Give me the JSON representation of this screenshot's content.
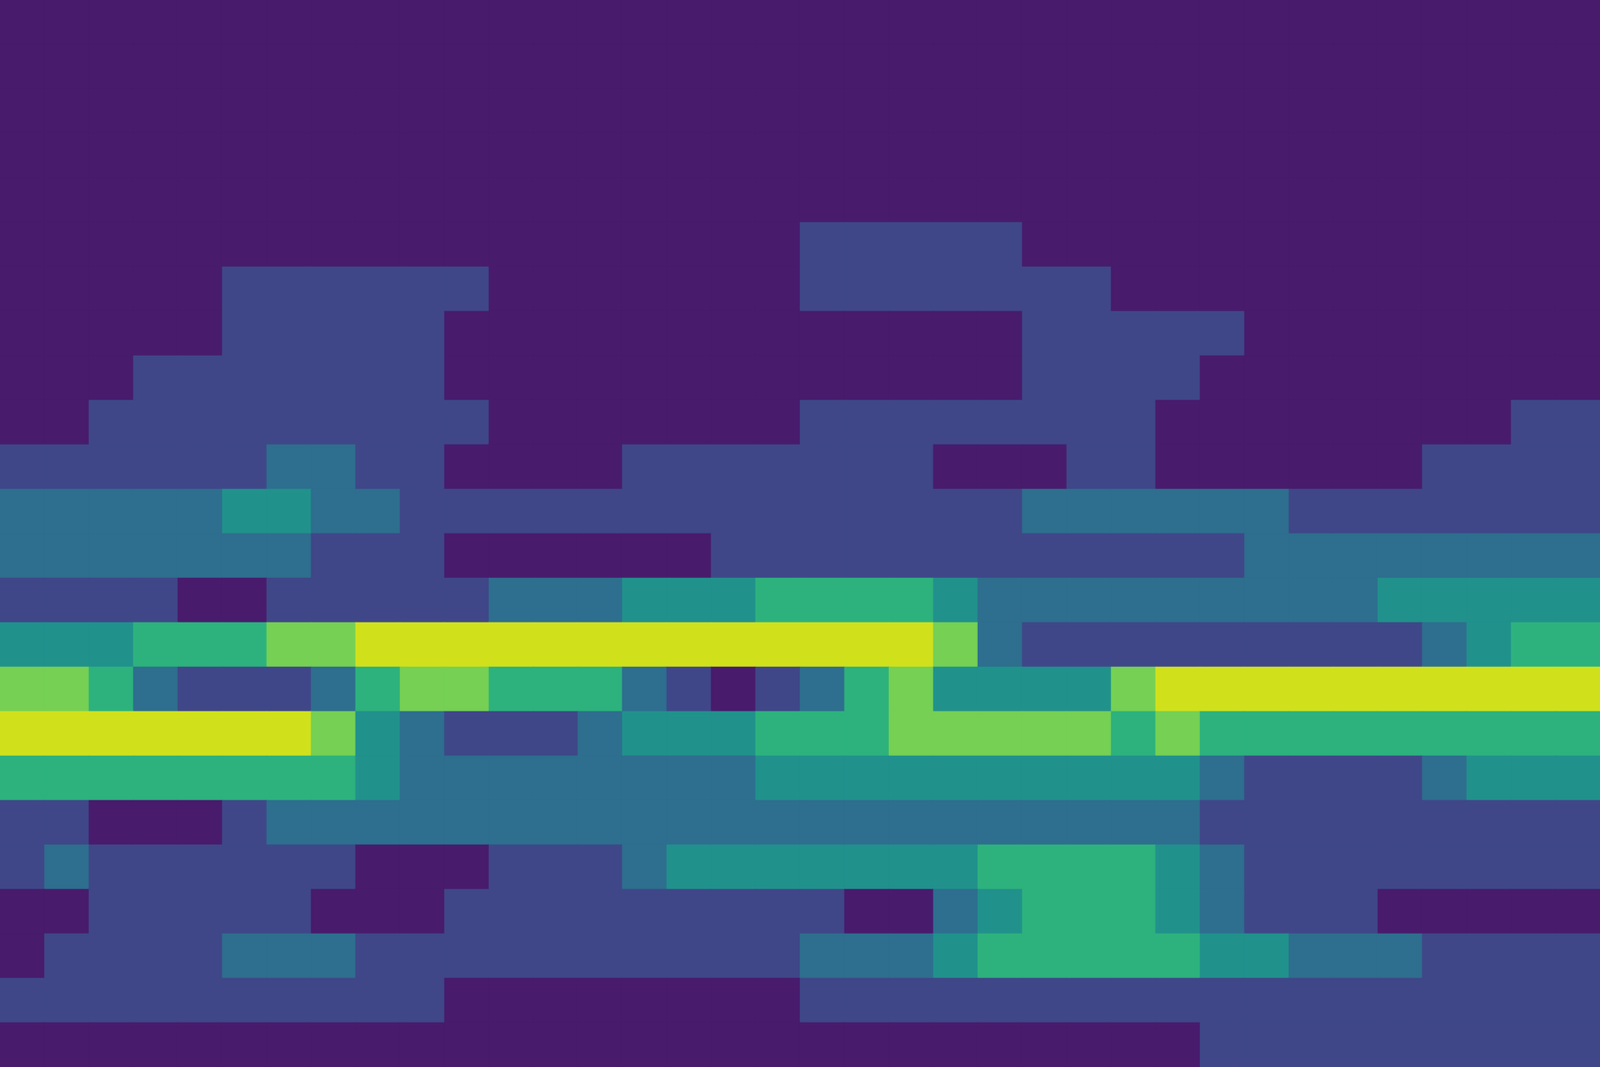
{
  "chart_data": {
    "type": "contour",
    "tick_labels": false,
    "levels": [
      0,
      1,
      2,
      3,
      4,
      5,
      6,
      7
    ],
    "colors": [
      "#481b6d",
      "#3f4788",
      "#2e6e8e",
      "#21918c",
      "#2db27d",
      "#75d054",
      "#d0e11c"
    ],
    "z": [
      [
        0,
        0,
        0,
        0,
        0,
        0,
        0,
        0,
        0,
        0,
        0,
        0,
        0,
        0,
        0,
        0,
        0,
        0,
        0,
        0,
        0,
        0,
        0,
        0,
        0,
        0,
        0,
        0,
        0,
        0,
        0,
        0,
        0,
        0,
        0,
        0
      ],
      [
        0,
        0,
        0,
        0,
        0,
        0,
        0,
        0,
        0,
        0,
        0,
        0,
        0,
        0,
        0,
        0,
        0,
        0,
        0,
        0,
        0,
        0,
        0,
        0,
        0,
        0,
        0,
        0,
        0,
        0,
        0,
        0,
        0,
        0,
        0,
        0
      ],
      [
        0,
        0,
        0,
        0,
        0,
        0,
        0,
        0,
        0,
        0,
        0,
        0,
        0,
        0,
        0,
        0,
        0,
        0,
        0,
        0,
        0,
        0,
        0,
        0,
        0,
        0,
        0,
        0,
        0,
        0,
        0,
        0,
        0,
        0,
        0,
        0
      ],
      [
        0,
        0,
        0,
        0,
        0,
        0,
        0,
        0,
        0,
        0,
        0,
        0,
        0,
        0,
        0,
        0,
        0,
        0,
        0,
        0,
        0,
        0,
        0,
        0,
        0,
        0,
        0,
        0,
        0,
        0,
        0,
        0,
        0,
        0,
        0,
        0
      ],
      [
        0,
        0,
        0,
        0,
        0,
        0,
        0,
        0,
        0,
        0,
        0,
        0,
        0,
        0,
        0,
        0,
        0,
        0,
        0,
        0,
        0,
        0,
        0,
        0,
        0,
        0,
        0,
        0,
        0,
        0,
        0,
        0,
        0,
        0,
        0,
        0
      ],
      [
        0,
        0,
        0,
        0,
        0,
        0,
        0,
        0,
        0,
        0,
        0,
        0,
        0,
        0,
        0,
        0,
        0,
        0,
        1,
        1,
        1,
        1,
        1,
        0,
        0,
        0,
        0,
        0,
        0,
        0,
        0,
        0,
        0,
        0,
        0,
        0
      ],
      [
        0,
        0,
        0,
        0,
        0,
        1,
        1,
        1,
        1,
        1,
        1,
        0,
        0,
        0,
        0,
        0,
        0,
        0,
        1,
        1,
        1,
        1,
        1,
        1,
        1,
        0,
        0,
        0,
        0,
        0,
        0,
        0,
        0,
        0,
        0,
        0
      ],
      [
        0,
        0,
        0,
        0,
        0,
        1,
        1,
        1,
        1,
        1,
        0,
        0,
        0,
        0,
        0,
        0,
        0,
        0,
        0,
        0,
        0,
        0,
        0,
        1,
        1,
        1,
        1,
        1,
        0,
        0,
        0,
        0,
        0,
        0,
        0,
        0
      ],
      [
        0,
        0,
        0,
        1,
        1,
        1,
        1,
        1,
        1,
        1,
        0,
        0,
        0,
        0,
        0,
        0,
        0,
        0,
        0,
        0,
        0,
        0,
        0,
        1,
        1,
        1,
        1,
        0,
        0,
        0,
        0,
        0,
        0,
        0,
        0,
        0
      ],
      [
        0,
        0,
        1,
        1,
        1,
        1,
        1,
        1,
        1,
        1,
        1,
        0,
        0,
        0,
        0,
        0,
        0,
        0,
        1,
        1,
        1,
        1,
        1,
        1,
        1,
        1,
        0,
        0,
        0,
        0,
        0,
        0,
        0,
        0,
        1,
        1
      ],
      [
        1,
        1,
        1,
        1,
        1,
        1,
        2,
        2,
        1,
        1,
        0,
        0,
        0,
        0,
        1,
        1,
        1,
        1,
        1,
        1,
        1,
        0,
        0,
        0,
        1,
        1,
        0,
        0,
        0,
        0,
        0,
        0,
        1,
        1,
        1,
        1
      ],
      [
        2,
        2,
        2,
        2,
        2,
        3,
        3,
        2,
        2,
        1,
        1,
        1,
        1,
        1,
        1,
        1,
        1,
        1,
        1,
        1,
        1,
        1,
        1,
        2,
        2,
        2,
        2,
        2,
        2,
        1,
        1,
        1,
        1,
        1,
        1,
        1
      ],
      [
        2,
        2,
        2,
        2,
        2,
        2,
        2,
        1,
        1,
        1,
        0,
        0,
        0,
        0,
        0,
        0,
        1,
        1,
        1,
        1,
        1,
        1,
        1,
        1,
        1,
        1,
        1,
        1,
        2,
        2,
        2,
        2,
        2,
        2,
        2,
        2
      ],
      [
        1,
        1,
        1,
        1,
        0,
        0,
        1,
        1,
        1,
        1,
        1,
        2,
        2,
        2,
        3,
        3,
        3,
        4,
        4,
        4,
        4,
        3,
        2,
        2,
        2,
        2,
        2,
        2,
        2,
        2,
        2,
        3,
        3,
        3,
        3,
        3
      ],
      [
        3,
        3,
        3,
        4,
        4,
        4,
        5,
        5,
        6,
        6,
        6,
        6,
        6,
        6,
        6,
        6,
        6,
        6,
        6,
        6,
        6,
        5,
        2,
        1,
        1,
        1,
        1,
        1,
        1,
        1,
        1,
        1,
        2,
        3,
        4,
        4
      ],
      [
        5,
        5,
        4,
        2,
        1,
        1,
        1,
        2,
        4,
        5,
        5,
        4,
        4,
        4,
        2,
        1,
        0,
        1,
        2,
        4,
        5,
        3,
        3,
        3,
        3,
        5,
        6,
        6,
        6,
        6,
        6,
        6,
        6,
        6,
        6,
        6
      ],
      [
        6,
        6,
        6,
        6,
        6,
        6,
        6,
        5,
        3,
        2,
        1,
        1,
        1,
        2,
        3,
        3,
        3,
        4,
        4,
        4,
        5,
        5,
        5,
        5,
        5,
        4,
        5,
        4,
        4,
        4,
        4,
        4,
        4,
        4,
        4,
        4
      ],
      [
        4,
        4,
        4,
        4,
        4,
        4,
        4,
        4,
        3,
        2,
        2,
        2,
        2,
        2,
        2,
        2,
        2,
        3,
        3,
        3,
        3,
        3,
        3,
        3,
        3,
        3,
        3,
        2,
        1,
        1,
        1,
        1,
        2,
        3,
        3,
        3
      ],
      [
        1,
        1,
        0,
        0,
        0,
        1,
        2,
        2,
        2,
        2,
        2,
        2,
        2,
        2,
        2,
        2,
        2,
        2,
        2,
        2,
        2,
        2,
        2,
        2,
        2,
        2,
        2,
        1,
        1,
        1,
        1,
        1,
        1,
        1,
        1,
        1
      ],
      [
        1,
        2,
        1,
        1,
        1,
        1,
        1,
        1,
        0,
        0,
        0,
        1,
        1,
        1,
        2,
        3,
        3,
        3,
        3,
        3,
        3,
        3,
        4,
        4,
        4,
        4,
        3,
        2,
        1,
        1,
        1,
        1,
        1,
        1,
        1,
        1
      ],
      [
        0,
        0,
        1,
        1,
        1,
        1,
        1,
        0,
        0,
        0,
        1,
        1,
        1,
        1,
        1,
        1,
        1,
        1,
        1,
        0,
        0,
        2,
        3,
        4,
        4,
        4,
        3,
        2,
        1,
        1,
        1,
        0,
        0,
        0,
        0,
        0
      ],
      [
        0,
        1,
        1,
        1,
        1,
        2,
        2,
        2,
        1,
        1,
        1,
        1,
        1,
        1,
        1,
        1,
        1,
        1,
        2,
        2,
        2,
        3,
        4,
        4,
        4,
        4,
        4,
        3,
        3,
        2,
        2,
        2,
        1,
        1,
        1,
        1
      ],
      [
        1,
        1,
        1,
        1,
        1,
        1,
        1,
        1,
        1,
        1,
        0,
        0,
        0,
        0,
        0,
        0,
        0,
        0,
        1,
        1,
        1,
        1,
        1,
        1,
        1,
        1,
        1,
        1,
        1,
        1,
        1,
        1,
        1,
        1,
        1,
        1
      ],
      [
        0,
        0,
        0,
        0,
        0,
        0,
        0,
        0,
        0,
        0,
        0,
        0,
        0,
        0,
        0,
        0,
        0,
        0,
        0,
        0,
        0,
        0,
        0,
        0,
        0,
        0,
        0,
        1,
        1,
        1,
        1,
        1,
        1,
        1,
        1,
        1
      ]
    ]
  }
}
